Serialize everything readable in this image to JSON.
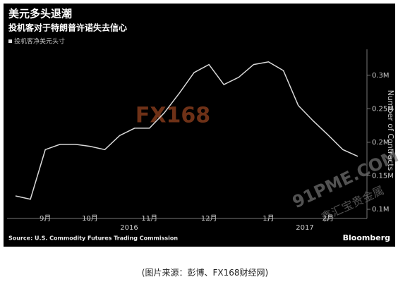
{
  "chart_data": {
    "type": "line",
    "title": "美元多头退潮",
    "subtitle": "投机客对于特朗普许诺失去信心",
    "y_axis_label": "Number of Contracts",
    "categories": [
      null,
      null,
      "9月",
      null,
      null,
      "10月",
      null,
      null,
      null,
      "11月",
      null,
      null,
      null,
      "12月",
      null,
      null,
      null,
      "1月",
      null,
      null,
      null,
      "2月",
      null,
      null
    ],
    "series": [
      {
        "name": "投机客净美元头寸",
        "color": "#d9d9d9",
        "values": [
          0.12,
          0.115,
          0.189,
          0.197,
          0.197,
          0.194,
          0.189,
          0.21,
          0.221,
          0.221,
          0.244,
          0.273,
          0.304,
          0.316,
          0.286,
          0.297,
          0.316,
          0.32,
          0.307,
          0.255,
          0.232,
          0.211,
          0.189,
          0.179
        ]
      }
    ],
    "ylim": [
      0.09,
      0.345
    ],
    "yticks": [
      {
        "value": 0.1,
        "label": "0.1M"
      },
      {
        "value": 0.15,
        "label": "0.15M"
      },
      {
        "value": 0.2,
        "label": "0.2M"
      },
      {
        "value": 0.25,
        "label": "0.25M"
      },
      {
        "value": 0.3,
        "label": "0.3M"
      }
    ],
    "year_labels": [
      "2016",
      "2017"
    ],
    "source": "Source: U.S. Commodity Futures Trading Commission",
    "brand": "Bloomberg",
    "watermarks": [
      "FX168",
      "91PME.COM",
      "鑫汇宝贵金属"
    ]
  },
  "caption": "(图片来源：彭博、FX168财经网)"
}
